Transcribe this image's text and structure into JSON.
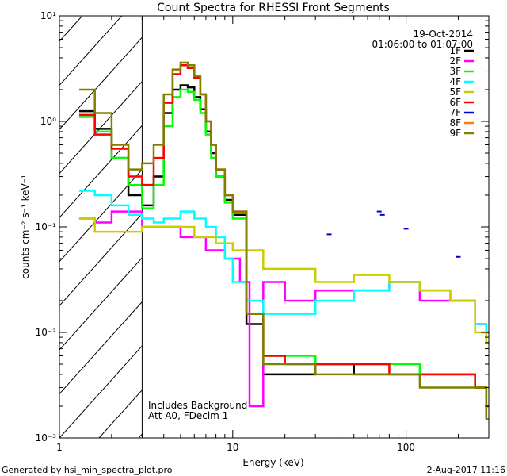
{
  "chart_data": {
    "type": "line",
    "title": "Count Spectra for RHESSI Front Segments",
    "xlabel": "Energy (keV)",
    "ylabel": "counts cm⁻² s⁻¹ keV⁻¹",
    "xscale": "log",
    "yscale": "log",
    "xlim": [
      1,
      300
    ],
    "ylim": [
      0.001,
      10
    ],
    "x_tick_labels": [
      "1",
      "10",
      "100"
    ],
    "y_tick_labels": [
      "10⁻³",
      "10⁻²",
      "10⁻¹",
      "10⁰",
      "10¹"
    ],
    "date": "19-Oct-2014",
    "time_range": "01:06:00 to 01:07:00",
    "annotation": [
      "Includes Background",
      "Att A0, FDecim 1"
    ],
    "shaded_region_xmax": 3,
    "series": [
      {
        "name": "1F",
        "color": "#000000",
        "x": [
          1.3,
          1.6,
          2.0,
          2.5,
          3.0,
          3.5,
          4.0,
          4.5,
          5.0,
          5.5,
          6.0,
          6.5,
          7.0,
          7.5,
          8.0,
          9.0,
          10.0,
          12,
          15,
          20,
          30,
          50,
          80,
          120,
          180,
          250,
          290
        ],
        "y": [
          1.25,
          0.85,
          0.45,
          0.2,
          0.16,
          0.3,
          1.2,
          2.0,
          2.2,
          2.1,
          1.7,
          1.3,
          0.8,
          0.5,
          0.3,
          0.18,
          0.13,
          0.012,
          0.004,
          0.004,
          0.005,
          0.004,
          0.004,
          0.004,
          0.004,
          0.003,
          0.0015
        ]
      },
      {
        "name": "2F",
        "color": "#ff00ff",
        "x": [
          1.3,
          1.6,
          2.0,
          2.5,
          3.0,
          3.5,
          4.0,
          5,
          7,
          9,
          11,
          12.5,
          15,
          20,
          30,
          50,
          80,
          120,
          180,
          250,
          290
        ],
        "y": [
          0.12,
          0.11,
          0.14,
          0.14,
          0.1,
          0.1,
          0.1,
          0.08,
          0.06,
          0.05,
          0.03,
          0.002,
          0.03,
          0.02,
          0.025,
          0.025,
          0.03,
          0.02,
          0.02,
          0.012,
          0.01
        ]
      },
      {
        "name": "3F",
        "color": "#00ff00",
        "x": [
          1.3,
          1.6,
          2.0,
          2.5,
          3.0,
          3.5,
          4.0,
          4.5,
          5.0,
          5.5,
          6.0,
          6.5,
          7.0,
          7.5,
          8.0,
          9.0,
          10.0,
          12,
          15,
          20,
          30,
          50,
          80,
          120,
          180,
          250,
          290
        ],
        "y": [
          1.1,
          0.8,
          0.45,
          0.25,
          0.15,
          0.25,
          0.9,
          1.7,
          2.0,
          1.9,
          1.6,
          1.2,
          0.75,
          0.45,
          0.3,
          0.17,
          0.12,
          0.015,
          0.006,
          0.006,
          0.005,
          0.005,
          0.005,
          0.004,
          0.004,
          0.003,
          0.002
        ]
      },
      {
        "name": "4F",
        "color": "#00ffff",
        "x": [
          1.3,
          1.6,
          2.0,
          2.5,
          3.0,
          3.5,
          4.0,
          5,
          6,
          7,
          8,
          9,
          10,
          12,
          15,
          20,
          30,
          50,
          80,
          120,
          180,
          250,
          290
        ],
        "y": [
          0.22,
          0.2,
          0.16,
          0.13,
          0.12,
          0.11,
          0.12,
          0.14,
          0.12,
          0.1,
          0.08,
          0.05,
          0.03,
          0.02,
          0.015,
          0.015,
          0.02,
          0.025,
          0.03,
          0.025,
          0.02,
          0.012,
          0.008
        ]
      },
      {
        "name": "5F",
        "color": "#cccc00",
        "x": [
          1.3,
          1.6,
          2.0,
          2.5,
          3.0,
          4,
          6,
          8,
          10,
          12,
          15,
          20,
          30,
          50,
          80,
          120,
          180,
          250,
          290
        ],
        "y": [
          0.12,
          0.09,
          0.09,
          0.09,
          0.1,
          0.1,
          0.08,
          0.07,
          0.06,
          0.06,
          0.04,
          0.04,
          0.03,
          0.035,
          0.03,
          0.025,
          0.02,
          0.01,
          0.008
        ]
      },
      {
        "name": "6F",
        "color": "#ff0000",
        "x": [
          1.3,
          1.6,
          2.0,
          2.5,
          3.0,
          3.5,
          4.0,
          4.5,
          5.0,
          5.5,
          6.0,
          6.5,
          7.0,
          7.5,
          8.0,
          9.0,
          10.0,
          12,
          15,
          20,
          30,
          50,
          80,
          120,
          180,
          250,
          290
        ],
        "y": [
          1.15,
          0.75,
          0.55,
          0.3,
          0.25,
          0.45,
          1.5,
          2.8,
          3.4,
          3.2,
          2.6,
          1.8,
          1.0,
          0.6,
          0.35,
          0.2,
          0.14,
          0.015,
          0.006,
          0.005,
          0.005,
          0.005,
          0.004,
          0.004,
          0.004,
          0.003,
          0.002
        ]
      },
      {
        "name": "7F",
        "color": "#0000cc",
        "x": [
          36,
          70,
          73,
          100,
          200
        ],
        "y": [
          0.085,
          0.14,
          0.13,
          0.096,
          0.052
        ]
      },
      {
        "name": "8F",
        "color": "#ff8000",
        "x": [],
        "y": []
      },
      {
        "name": "9F",
        "color": "#808000",
        "x": [
          1.3,
          1.6,
          2.0,
          2.5,
          3.0,
          3.5,
          4.0,
          4.5,
          5.0,
          5.5,
          6.0,
          6.5,
          7.0,
          7.5,
          8.0,
          9.0,
          10.0,
          12,
          15,
          20,
          30,
          50,
          80,
          120,
          180,
          250,
          290
        ],
        "y": [
          2.0,
          1.2,
          0.6,
          0.35,
          0.4,
          0.6,
          1.8,
          3.1,
          3.6,
          3.4,
          2.7,
          1.8,
          1.0,
          0.6,
          0.35,
          0.2,
          0.14,
          0.015,
          0.005,
          0.005,
          0.004,
          0.004,
          0.004,
          0.003,
          0.003,
          0.003,
          0.0015
        ]
      }
    ]
  },
  "footer": {
    "generated_by": "Generated by hsi_min_spectra_plot.pro",
    "date": "2-Aug-2017 11:16"
  }
}
